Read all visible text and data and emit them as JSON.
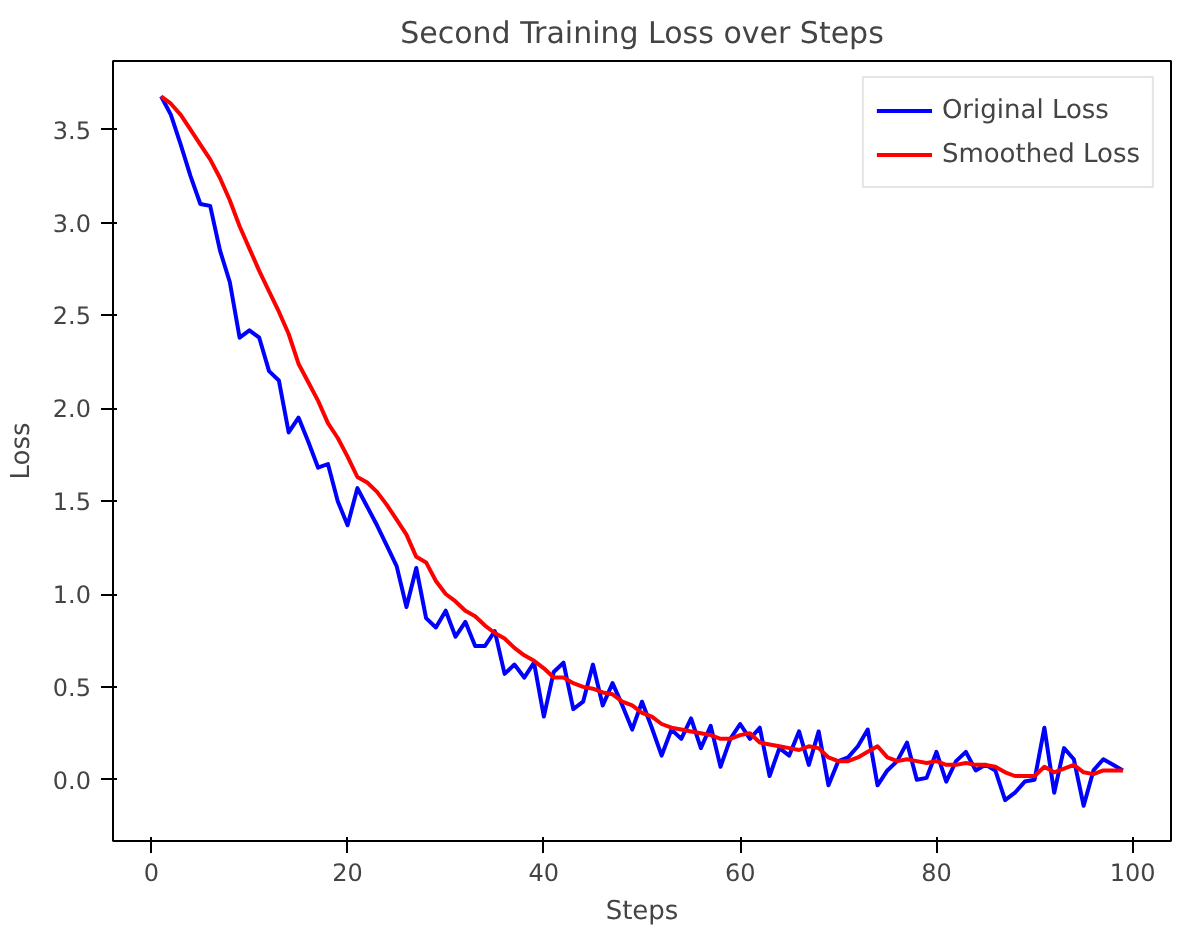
{
  "chart_data": {
    "type": "line",
    "title": "Second Training Loss over Steps",
    "xlabel": "Steps",
    "ylabel": "Loss",
    "x": [
      1,
      2,
      3,
      4,
      5,
      6,
      7,
      8,
      9,
      10,
      11,
      12,
      13,
      14,
      15,
      16,
      17,
      18,
      19,
      20,
      21,
      22,
      23,
      24,
      25,
      26,
      27,
      28,
      29,
      30,
      31,
      32,
      33,
      34,
      35,
      36,
      37,
      38,
      39,
      40,
      41,
      42,
      43,
      44,
      45,
      46,
      47,
      48,
      49,
      50,
      51,
      52,
      53,
      54,
      55,
      56,
      57,
      58,
      59,
      60,
      61,
      62,
      63,
      64,
      65,
      66,
      67,
      68,
      69,
      70,
      71,
      72,
      73,
      74,
      75,
      76,
      77,
      78,
      79,
      80,
      81,
      82,
      83,
      84,
      85,
      86,
      87,
      88,
      89,
      90,
      91,
      92,
      93,
      94,
      95,
      96,
      97,
      98,
      99
    ],
    "series": [
      {
        "name": "Original Loss",
        "color": "#0000ff",
        "values": [
          3.68,
          3.58,
          3.42,
          3.25,
          3.1,
          3.09,
          2.85,
          2.68,
          2.38,
          2.42,
          2.38,
          2.2,
          2.15,
          1.87,
          1.95,
          1.82,
          1.68,
          1.7,
          1.5,
          1.37,
          1.57,
          1.47,
          1.37,
          1.26,
          1.15,
          0.93,
          1.14,
          0.87,
          0.82,
          0.91,
          0.77,
          0.85,
          0.72,
          0.72,
          0.8,
          0.57,
          0.62,
          0.55,
          0.63,
          0.34,
          0.58,
          0.63,
          0.38,
          0.42,
          0.62,
          0.4,
          0.52,
          0.4,
          0.27,
          0.42,
          0.28,
          0.13,
          0.27,
          0.22,
          0.33,
          0.17,
          0.29,
          0.07,
          0.22,
          0.3,
          0.22,
          0.28,
          0.02,
          0.17,
          0.13,
          0.26,
          0.08,
          0.26,
          -0.03,
          0.1,
          0.12,
          0.18,
          0.27,
          -0.03,
          0.05,
          0.1,
          0.2,
          0.0,
          0.01,
          0.15,
          -0.01,
          0.1,
          0.15,
          0.05,
          0.08,
          0.05,
          -0.11,
          -0.07,
          -0.01,
          0.0,
          0.28,
          -0.07,
          0.17,
          0.11,
          -0.14,
          0.05,
          0.11,
          0.08,
          0.05
        ]
      },
      {
        "name": "Smoothed Loss",
        "color": "#ff0000",
        "values": [
          3.68,
          3.64,
          3.58,
          3.5,
          3.42,
          3.34,
          3.24,
          3.12,
          2.98,
          2.86,
          2.74,
          2.63,
          2.52,
          2.4,
          2.24,
          2.14,
          2.04,
          1.92,
          1.84,
          1.74,
          1.63,
          1.6,
          1.55,
          1.48,
          1.4,
          1.32,
          1.2,
          1.17,
          1.07,
          1.0,
          0.96,
          0.91,
          0.88,
          0.83,
          0.79,
          0.76,
          0.71,
          0.67,
          0.64,
          0.6,
          0.55,
          0.55,
          0.52,
          0.5,
          0.49,
          0.47,
          0.46,
          0.42,
          0.4,
          0.36,
          0.34,
          0.3,
          0.28,
          0.27,
          0.26,
          0.25,
          0.24,
          0.22,
          0.22,
          0.24,
          0.25,
          0.2,
          0.19,
          0.18,
          0.17,
          0.16,
          0.18,
          0.17,
          0.12,
          0.1,
          0.1,
          0.12,
          0.15,
          0.18,
          0.12,
          0.1,
          0.11,
          0.1,
          0.09,
          0.1,
          0.08,
          0.08,
          0.09,
          0.08,
          0.08,
          0.07,
          0.04,
          0.02,
          0.02,
          0.02,
          0.07,
          0.04,
          0.06,
          0.08,
          0.04,
          0.03,
          0.05,
          0.05,
          0.05
        ]
      }
    ],
    "xlim": [
      -3.9,
      103.9
    ],
    "ylim": [
      -0.33,
      3.87
    ],
    "xticks": [
      0,
      20,
      40,
      60,
      80,
      100
    ],
    "yticks": [
      {
        "value": 0,
        "label": "0.0"
      },
      {
        "value": 0.5,
        "label": "0.5"
      },
      {
        "value": 1,
        "label": "1.0"
      },
      {
        "value": 1.5,
        "label": "1.5"
      },
      {
        "value": 2,
        "label": "2.0"
      },
      {
        "value": 2.5,
        "label": "2.5"
      },
      {
        "value": 3,
        "label": "3.0"
      },
      {
        "value": 3.5,
        "label": "3.5"
      }
    ],
    "legend": "top right",
    "grid": false,
    "marker": "none",
    "line_style": "solid"
  }
}
